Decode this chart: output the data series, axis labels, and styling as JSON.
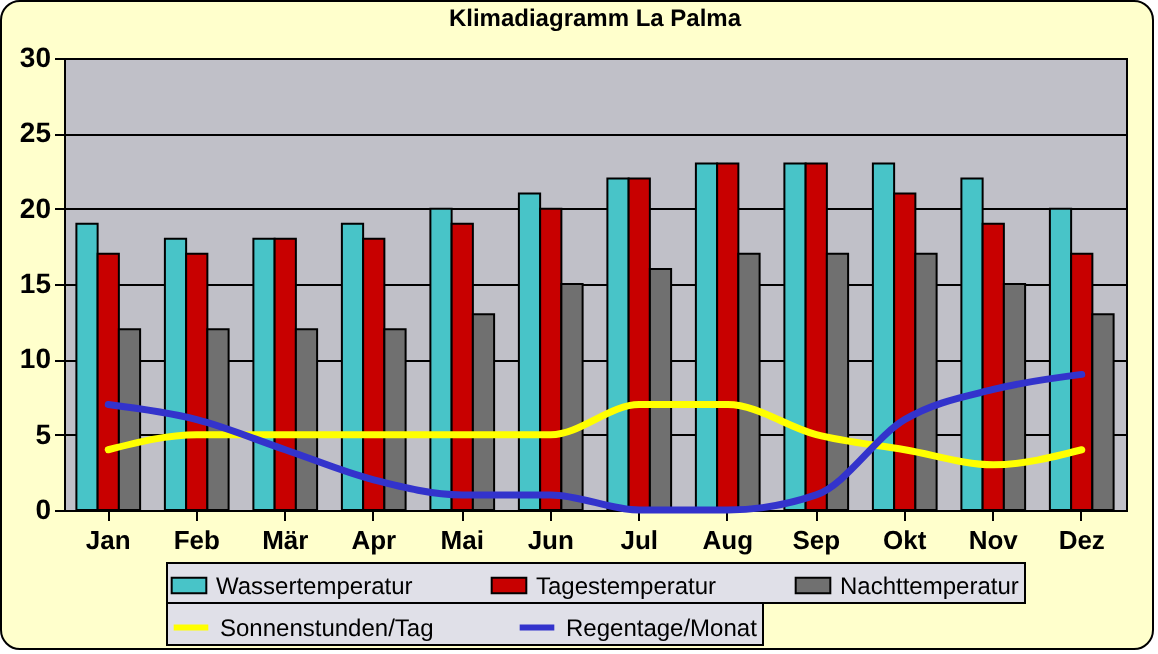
{
  "chart_data": {
    "type": "bar",
    "title": "Klimadiagramm La Palma",
    "categories": [
      "Jan",
      "Feb",
      "Mär",
      "Apr",
      "Mai",
      "Jun",
      "Jul",
      "Aug",
      "Sep",
      "Okt",
      "Nov",
      "Dez"
    ],
    "series": [
      {
        "name": "Wassertemperatur",
        "color": "#48c4c8",
        "values": [
          19,
          18,
          18,
          19,
          20,
          21,
          22,
          23,
          23,
          23,
          22,
          20
        ]
      },
      {
        "name": "Tagestemperatur",
        "color": "#c80000",
        "values": [
          17,
          17,
          18,
          18,
          19,
          20,
          22,
          23,
          23,
          21,
          19,
          17
        ]
      },
      {
        "name": "Nachttemperatur",
        "color": "#707070",
        "values": [
          12,
          12,
          12,
          12,
          13,
          15,
          16,
          17,
          17,
          17,
          15,
          13
        ]
      },
      {
        "name": "Sonnenstunden/Tag",
        "type": "line",
        "color": "#ffff00",
        "values": [
          4,
          5,
          5,
          5,
          5,
          5,
          7,
          7,
          5,
          4,
          3,
          4
        ]
      },
      {
        "name": "Regentage/Monat",
        "type": "line",
        "color": "#3333cc",
        "values": [
          7,
          6,
          4,
          2,
          1,
          1,
          0,
          0,
          1,
          6,
          8,
          9
        ]
      }
    ],
    "ylim": [
      0,
      30
    ],
    "yticks": [
      0,
      5,
      10,
      15,
      20,
      25,
      30
    ],
    "grid": "y",
    "legend": "bottom"
  }
}
